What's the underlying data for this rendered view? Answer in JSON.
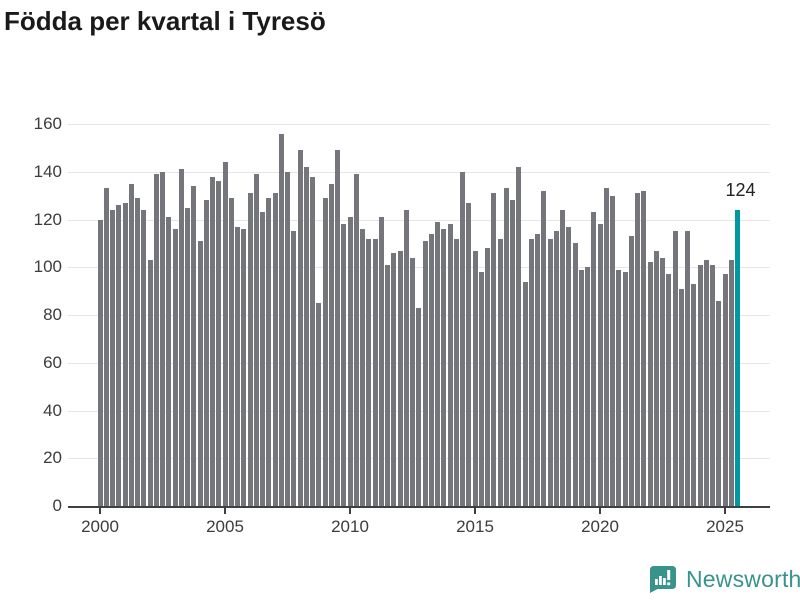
{
  "title": "Födda per kvartal i Tyresö",
  "branding": {
    "name": "Newsworthy",
    "icon": "newsworthy-logo-icon",
    "color": "#38938c"
  },
  "colors": {
    "bar": "#75757c",
    "highlight": "#0099a1",
    "gridline": "#e6e6e6",
    "axis": "#404040",
    "title_text": "#1a1a1a",
    "tick_text": "#3d3d3d"
  },
  "chart_data": {
    "type": "bar",
    "title": "Födda per kvartal i Tyresö",
    "xlabel": "",
    "ylabel": "",
    "frequency": "quarterly",
    "x_start": "2000 Q1",
    "x_end": "2025 Q3",
    "values": [
      120,
      133,
      124,
      126,
      127,
      135,
      129,
      124,
      103,
      139,
      140,
      121,
      116,
      141,
      125,
      134,
      111,
      128,
      138,
      136,
      144,
      129,
      117,
      116,
      131,
      139,
      123,
      129,
      131,
      156,
      140,
      115,
      149,
      142,
      138,
      85,
      129,
      135,
      149,
      118,
      121,
      139,
      116,
      112,
      112,
      121,
      101,
      106,
      107,
      124,
      104,
      83,
      111,
      114,
      119,
      116,
      118,
      112,
      140,
      127,
      107,
      98,
      108,
      131,
      112,
      133,
      128,
      142,
      94,
      112,
      114,
      132,
      112,
      115,
      124,
      117,
      110,
      99,
      100,
      123,
      118,
      133,
      130,
      99,
      98,
      113,
      131,
      132,
      102,
      107,
      104,
      97,
      115,
      91,
      115,
      93,
      101,
      103,
      101,
      86,
      97,
      103,
      124
    ],
    "highlight": {
      "index": 102,
      "quarter": "2025 Q3",
      "value": 124,
      "label": "124"
    },
    "xticks": {
      "labels": [
        "2000",
        "2005",
        "2010",
        "2015",
        "2020",
        "2025"
      ],
      "quarter_indices": [
        0,
        20,
        40,
        60,
        80,
        100
      ]
    },
    "yticks": [
      0,
      20,
      40,
      60,
      80,
      100,
      120,
      140,
      160
    ],
    "ylim": [
      0,
      160
    ],
    "grid": "horizontal",
    "legend": "none"
  }
}
